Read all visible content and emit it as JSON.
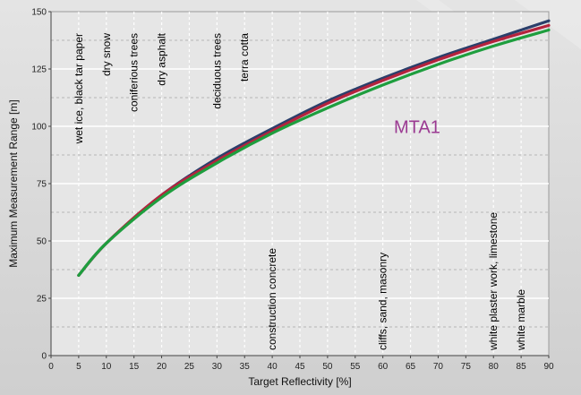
{
  "chart_data": {
    "type": "line",
    "xlabel": "Target Reflectivity [%]",
    "ylabel": "Maximum Measurement Range [m]",
    "xlim": [
      0,
      90
    ],
    "ylim": [
      0,
      150
    ],
    "x_ticks": [
      0,
      5,
      10,
      15,
      20,
      25,
      30,
      35,
      40,
      45,
      50,
      55,
      60,
      65,
      70,
      75,
      80,
      85,
      90
    ],
    "y_ticks": [
      0,
      25,
      50,
      75,
      100,
      125,
      150
    ],
    "grid": true,
    "series": [
      {
        "color": "#2b3f6b",
        "x": [
          5,
          10,
          20,
          30,
          40,
          50,
          60,
          70,
          80,
          90
        ],
        "y": [
          35,
          49,
          70,
          86,
          99,
          111,
          121,
          130,
          138,
          146
        ]
      },
      {
        "color": "#b4233d",
        "x": [
          5,
          10,
          20,
          30,
          40,
          50,
          60,
          70,
          80,
          90
        ],
        "y": [
          35,
          49,
          70,
          85,
          98,
          110,
          120,
          129,
          137,
          144
        ]
      },
      {
        "color": "#1e9e3e",
        "x": [
          5,
          10,
          20,
          30,
          40,
          50,
          60,
          70,
          80,
          90
        ],
        "y": [
          35,
          49,
          69,
          84,
          97,
          108,
          118,
          127,
          135,
          142
        ]
      }
    ],
    "series_label": {
      "text": "MTA1",
      "color": "#9b3a92",
      "x": 62,
      "y": 97
    },
    "annotations": [
      {
        "text": "wet ice, black tar paper",
        "x": 5
      },
      {
        "text": "dry snow",
        "x": 10
      },
      {
        "text": "coniferious trees",
        "x": 15
      },
      {
        "text": "dry asphalt",
        "x": 20
      },
      {
        "text": "deciduous trees",
        "x": 30
      },
      {
        "text": "terra cotta",
        "x": 35
      },
      {
        "text": "construction concrete",
        "x": 40
      },
      {
        "text": "cliffs, sand, masonry",
        "x": 60
      },
      {
        "text": "white plaster work, limestone",
        "x": 80
      },
      {
        "text": "white marble",
        "x": 85
      }
    ]
  }
}
